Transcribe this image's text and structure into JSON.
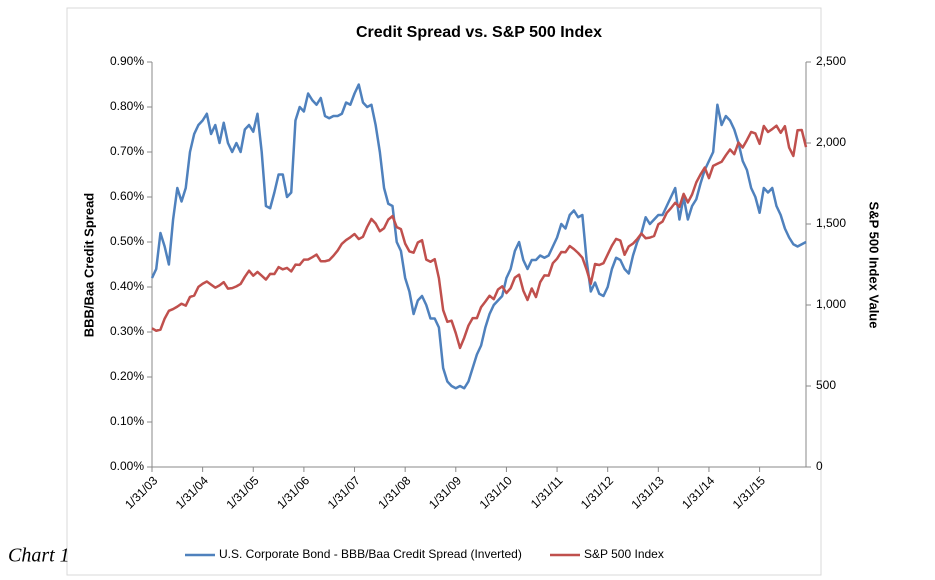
{
  "chart_data": {
    "type": "line",
    "title": "Credit Spread vs. S&P 500 Index",
    "y_label": "BBB/Baa Credit Spread",
    "y2_label": "S&P 500 Index Value",
    "annotation": "Chart 1",
    "categories": [
      "1/31/03",
      null,
      null,
      null,
      null,
      null,
      null,
      null,
      null,
      null,
      null,
      null,
      "1/31/04",
      null,
      null,
      null,
      null,
      null,
      null,
      null,
      null,
      null,
      null,
      null,
      "1/31/05",
      null,
      null,
      null,
      null,
      null,
      null,
      null,
      null,
      null,
      null,
      null,
      "1/31/06",
      null,
      null,
      null,
      null,
      null,
      null,
      null,
      null,
      null,
      null,
      null,
      "1/31/07",
      null,
      null,
      null,
      null,
      null,
      null,
      null,
      null,
      null,
      null,
      null,
      "1/31/08",
      null,
      null,
      null,
      null,
      null,
      null,
      null,
      null,
      null,
      null,
      null,
      "1/31/09",
      null,
      null,
      null,
      null,
      null,
      null,
      null,
      null,
      null,
      null,
      null,
      "1/31/10",
      null,
      null,
      null,
      null,
      null,
      null,
      null,
      null,
      null,
      null,
      null,
      "1/31/11",
      null,
      null,
      null,
      null,
      null,
      null,
      null,
      null,
      null,
      null,
      null,
      "1/31/12",
      null,
      null,
      null,
      null,
      null,
      null,
      null,
      null,
      null,
      null,
      null,
      "1/31/13",
      null,
      null,
      null,
      null,
      null,
      null,
      null,
      null,
      null,
      null,
      null,
      "1/31/14",
      null,
      null,
      null,
      null,
      null,
      null,
      null,
      null,
      null,
      null,
      null,
      "1/31/15",
      null,
      null,
      null,
      null,
      null,
      null,
      null,
      null,
      null,
      null,
      null
    ],
    "series": [
      {
        "name": "U.S. Corporate Bond - BBB/Baa Credit Spread (Inverted)",
        "color": "#4f81bd",
        "axis": "y",
        "values": [
          0.42,
          0.44,
          0.52,
          0.49,
          0.45,
          0.55,
          0.62,
          0.59,
          0.62,
          0.7,
          0.74,
          0.76,
          0.77,
          0.785,
          0.74,
          0.76,
          0.72,
          0.765,
          0.72,
          0.7,
          0.72,
          0.7,
          0.75,
          0.76,
          0.745,
          0.785,
          0.7,
          0.58,
          0.575,
          0.61,
          0.65,
          0.65,
          0.6,
          0.61,
          0.77,
          0.8,
          0.79,
          0.83,
          0.815,
          0.805,
          0.82,
          0.78,
          0.775,
          0.78,
          0.78,
          0.785,
          0.81,
          0.805,
          0.83,
          0.85,
          0.81,
          0.8,
          0.805,
          0.76,
          0.7,
          0.62,
          0.585,
          0.58,
          0.5,
          0.48,
          0.42,
          0.39,
          0.34,
          0.37,
          0.38,
          0.36,
          0.33,
          0.33,
          0.31,
          0.22,
          0.19,
          0.18,
          0.175,
          0.18,
          0.175,
          0.19,
          0.22,
          0.25,
          0.27,
          0.31,
          0.34,
          0.36,
          0.37,
          0.38,
          0.42,
          0.44,
          0.48,
          0.5,
          0.46,
          0.44,
          0.46,
          0.46,
          0.47,
          0.465,
          0.47,
          0.49,
          0.51,
          0.54,
          0.53,
          0.56,
          0.57,
          0.555,
          0.56,
          0.46,
          0.39,
          0.41,
          0.385,
          0.38,
          0.4,
          0.44,
          0.465,
          0.46,
          0.44,
          0.43,
          0.47,
          0.5,
          0.52,
          0.555,
          0.54,
          0.55,
          0.56,
          0.56,
          0.58,
          0.6,
          0.62,
          0.55,
          0.6,
          0.55,
          0.58,
          0.595,
          0.63,
          0.66,
          0.68,
          0.7,
          0.805,
          0.76,
          0.78,
          0.77,
          0.75,
          0.72,
          0.68,
          0.66,
          0.62,
          0.6,
          0.565,
          0.62,
          0.61,
          0.62,
          0.58,
          0.56,
          0.53,
          0.51,
          0.495,
          0.49,
          0.495,
          0.5
        ]
      },
      {
        "name": "S&P 500 Index",
        "color": "#c0504d",
        "axis": "y2",
        "values": [
          856,
          841,
          848,
          916,
          964,
          975,
          990,
          1008,
          996,
          1050,
          1058,
          1112,
          1131,
          1145,
          1126,
          1107,
          1121,
          1141,
          1101,
          1104,
          1115,
          1130,
          1174,
          1212,
          1181,
          1204,
          1181,
          1157,
          1192,
          1191,
          1234,
          1220,
          1229,
          1207,
          1249,
          1248,
          1280,
          1281,
          1295,
          1311,
          1270,
          1270,
          1277,
          1304,
          1336,
          1378,
          1401,
          1418,
          1438,
          1407,
          1421,
          1482,
          1531,
          1503,
          1455,
          1474,
          1527,
          1549,
          1481,
          1468,
          1379,
          1331,
          1323,
          1386,
          1400,
          1280,
          1267,
          1283,
          1165,
          969,
          896,
          903,
          826,
          735,
          798,
          873,
          919,
          919,
          987,
          1021,
          1057,
          1036,
          1096,
          1115,
          1074,
          1104,
          1169,
          1187,
          1089,
          1031,
          1102,
          1049,
          1141,
          1183,
          1181,
          1258,
          1286,
          1327,
          1326,
          1364,
          1345,
          1321,
          1292,
          1219,
          1131,
          1253,
          1247,
          1258,
          1312,
          1366,
          1408,
          1398,
          1310,
          1362,
          1379,
          1407,
          1441,
          1412,
          1416,
          1426,
          1498,
          1515,
          1569,
          1598,
          1631,
          1606,
          1686,
          1633,
          1682,
          1757,
          1806,
          1848,
          1783,
          1859,
          1872,
          1884,
          1924,
          1960,
          1931,
          2003,
          1972,
          2018,
          2068,
          2059,
          1995,
          2105,
          2068,
          2086,
          2107,
          2063,
          2104,
          1972,
          1920,
          2079,
          2080,
          1975
        ]
      }
    ],
    "ylim": [
      0,
      0.9
    ],
    "yticks": [
      {
        "value": 0,
        "label": "0.00%"
      },
      {
        "value": 0.1,
        "label": "0.10%"
      },
      {
        "value": 0.2,
        "label": "0.20%"
      },
      {
        "value": 0.3,
        "label": "0.30%"
      },
      {
        "value": 0.4,
        "label": "0.40%"
      },
      {
        "value": 0.5,
        "label": "0.50%"
      },
      {
        "value": 0.6,
        "label": "0.60%"
      },
      {
        "value": 0.7,
        "label": "0.70%"
      },
      {
        "value": 0.8,
        "label": "0.80%"
      },
      {
        "value": 0.9,
        "label": "0.90%"
      }
    ],
    "y2lim": [
      0,
      2500
    ],
    "y2ticks": [
      0,
      500,
      {
        "value": 1000,
        "label": "1,000"
      },
      {
        "value": 1500,
        "label": "1,500"
      },
      {
        "value": 2000,
        "label": "2,000"
      },
      {
        "value": 2500,
        "label": "2,500"
      }
    ],
    "legend": "bottom"
  }
}
